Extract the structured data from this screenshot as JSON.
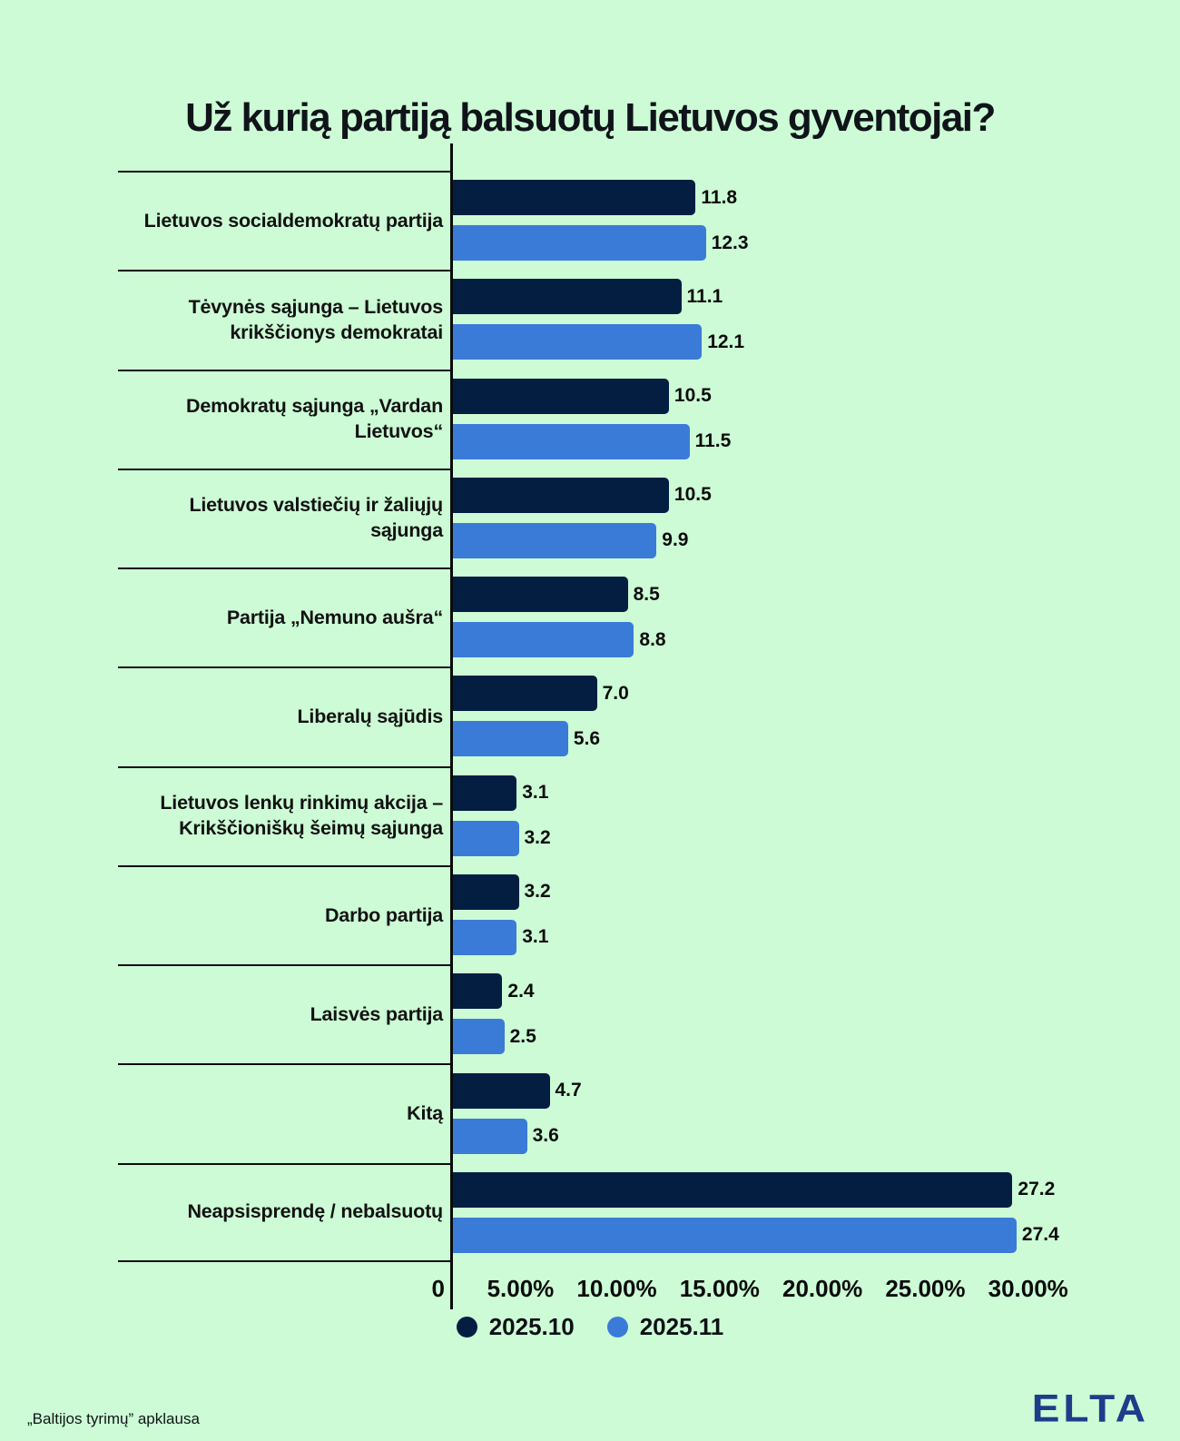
{
  "title": "Už kurią partiją balsuotų Lietuvos gyventojai?",
  "chart_data": {
    "type": "bar",
    "orientation": "horizontal",
    "title": "Už kurią partiją balsuotų Lietuvos gyventojai?",
    "categories": [
      "Lietuvos socialdemokratų partija",
      "Tėvynės sąjunga – Lietuvos\nkrikščionys demokratai",
      "Demokratų sąjunga „Vardan\nLietuvos“",
      "Lietuvos valstiečių ir žaliųjų sąjunga",
      "Partija „Nemuno aušra“",
      "Liberalų sąjūdis",
      "Lietuvos lenkų rinkimų akcija –\nKrikščioniškų šeimų sąjunga",
      "Darbo partija",
      "Laisvės partija",
      "Kitą",
      "Neapsisprendę / nebalsuotų"
    ],
    "series": [
      {
        "name": "2025.10",
        "color": "#041e42",
        "values": [
          11.8,
          11.1,
          10.5,
          10.5,
          8.5,
          7.0,
          3.1,
          3.2,
          2.4,
          4.7,
          27.2
        ]
      },
      {
        "name": "2025.11",
        "color": "#3b7bd8",
        "values": [
          12.3,
          12.1,
          11.5,
          9.9,
          8.8,
          5.6,
          3.2,
          3.1,
          2.5,
          3.6,
          27.4
        ]
      }
    ],
    "xlim": [
      0,
      30
    ],
    "x_ticks": [
      "0",
      "5.00%",
      "10.00%",
      "15.00%",
      "20.00%",
      "25.00%",
      "30.00%"
    ],
    "value_labels": true,
    "grid": false,
    "legend_position": "bottom"
  },
  "legend": {
    "items": [
      {
        "label": "2025.10",
        "color": "#041e42"
      },
      {
        "label": "2025.11",
        "color": "#3b7bd8"
      }
    ]
  },
  "footer": {
    "source": "„Baltijos tyrimų” apklausa",
    "logo": "ELTA"
  },
  "colors": {
    "background": "#ccfbd5",
    "bar_2025_10": "#041e42",
    "bar_2025_11": "#3b7bd8",
    "axis": "#0b0b0b",
    "logo": "#1d3c8a"
  }
}
